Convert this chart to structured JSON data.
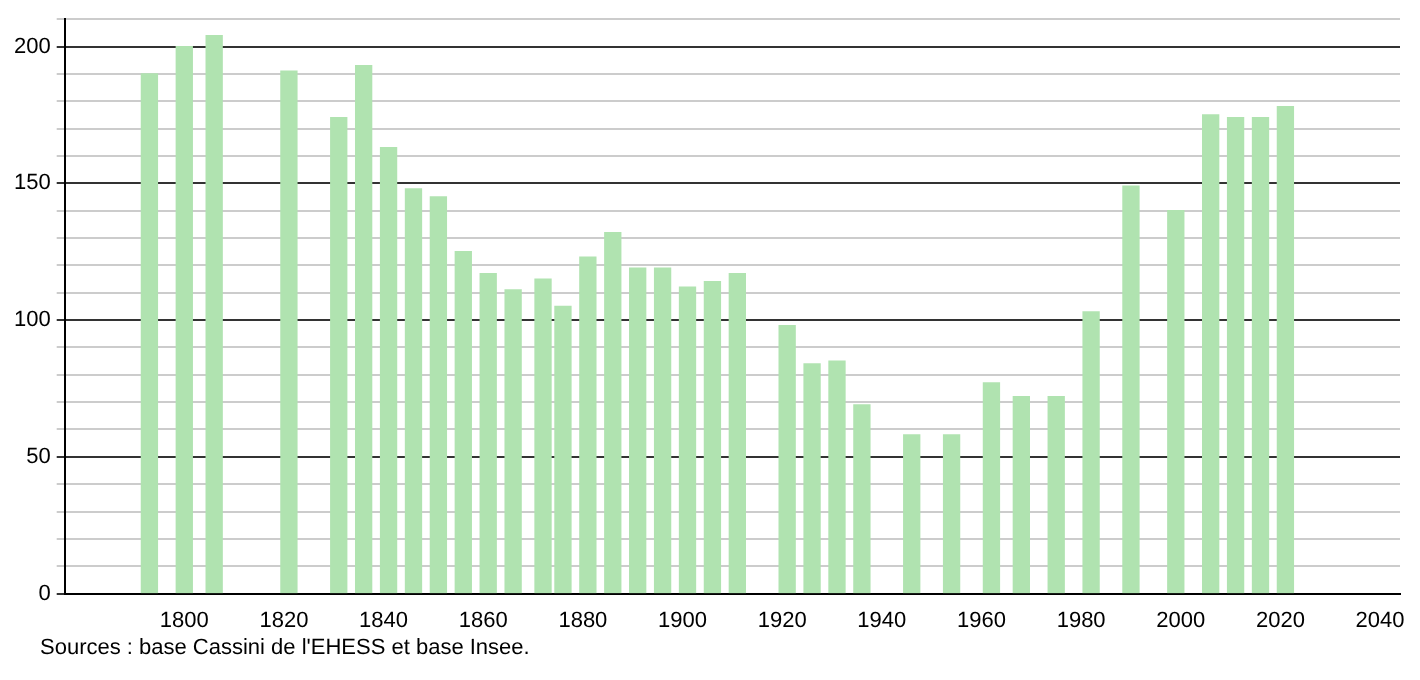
{
  "chart_data": {
    "type": "bar",
    "x": [
      1793,
      1800,
      1806,
      1821,
      1831,
      1836,
      1841,
      1846,
      1851,
      1856,
      1861,
      1866,
      1872,
      1876,
      1881,
      1886,
      1891,
      1896,
      1901,
      1906,
      1911,
      1921,
      1926,
      1931,
      1936,
      1946,
      1954,
      1962,
      1968,
      1975,
      1982,
      1990,
      1999,
      2006,
      2011,
      2016,
      2021
    ],
    "values": [
      190,
      200,
      204,
      191,
      174,
      193,
      163,
      148,
      145,
      125,
      117,
      111,
      115,
      105,
      123,
      132,
      119,
      119,
      112,
      114,
      117,
      98,
      84,
      85,
      69,
      58,
      58,
      77,
      72,
      72,
      103,
      149,
      140,
      175,
      174,
      174,
      178
    ],
    "color": "#b0e3b0",
    "xlim": [
      1776,
      2044
    ],
    "xticks": [
      1800,
      1820,
      1840,
      1860,
      1880,
      1900,
      1920,
      1940,
      1960,
      1980,
      2000,
      2020,
      2040
    ],
    "ylim": [
      0,
      210
    ],
    "yticks": [
      0,
      {
        "value": 10,
        "label": null
      },
      {
        "value": 20,
        "label": null
      },
      {
        "value": 30,
        "label": null
      },
      {
        "value": 40,
        "label": null
      },
      50,
      {
        "value": 60,
        "label": null
      },
      {
        "value": 70,
        "label": null
      },
      {
        "value": 80,
        "label": null
      },
      {
        "value": 90,
        "label": null
      },
      100,
      {
        "value": 110,
        "label": null
      },
      {
        "value": 120,
        "label": null
      },
      {
        "value": 130,
        "label": null
      },
      {
        "value": 140,
        "label": null
      },
      150,
      {
        "value": 160,
        "label": null
      },
      {
        "value": 170,
        "label": null
      },
      {
        "value": 180,
        "label": null
      },
      {
        "value": 190,
        "label": null
      },
      200,
      {
        "value": 210,
        "label": null
      }
    ],
    "grid": "y",
    "legend": false,
    "annotations": [
      "Sources : base Cassini de l'EHESS et base Insee."
    ]
  }
}
